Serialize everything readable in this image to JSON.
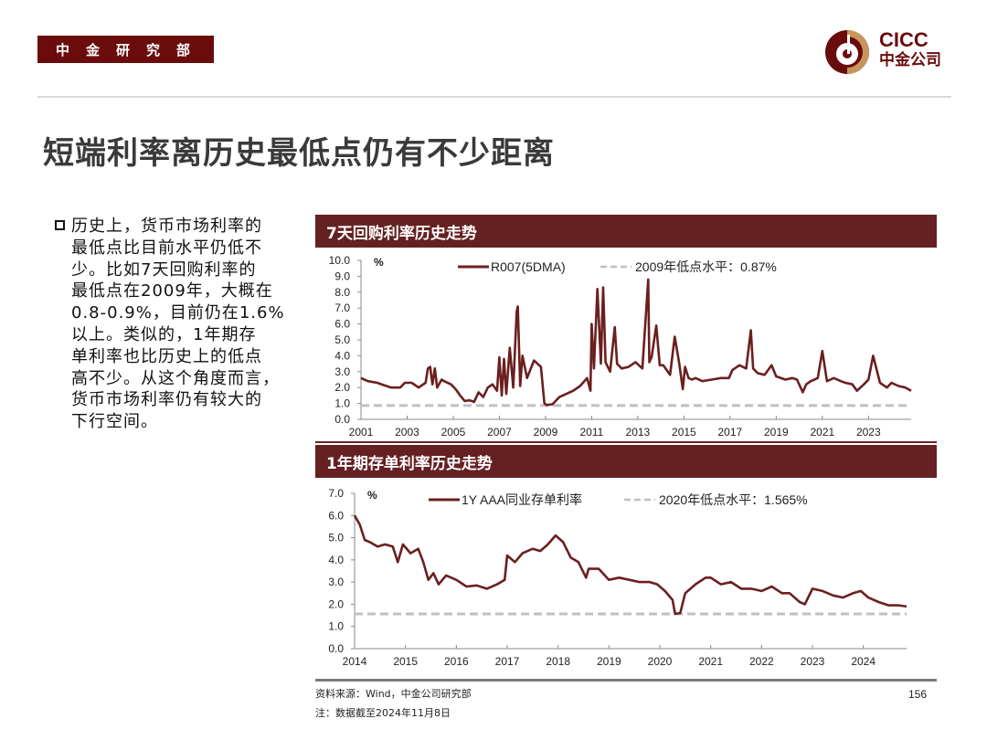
{
  "header": {
    "dept_badge": "中金研究部",
    "logo_en": "CICC",
    "logo_cn": "中金公司",
    "colors": {
      "brand_dark": "#6a0c0c",
      "brand_gold": "#c8955a",
      "panel_header": "#652121",
      "series_line": "#6b1f1f",
      "reference_line": "#c0c0c0"
    }
  },
  "page_title": "短端利率离历史最低点仍有不少距离",
  "bullet": {
    "icon": "hollow-square-bullet-icon",
    "text": "历史上，货币市场利率的最低点比目前水平仍低不少。比如7天回购利率的最低点在2009年，大概在0.8-0.9%，目前仍在1.6%以上。类似的，1年期存单利率也比历史上的低点高不少。从这个角度而言，货币市场利率仍有较大的下行空间。",
    "lines": [
      "历史上，货币市场利率的",
      "最低点比目前水平仍低不",
      "少。比如7天回购利率的",
      "最低点在2009年，大概在",
      "0.8-0.9%，目前仍在1.6%",
      "以上。类似的，1年期存",
      "单利率也比历史上的低点",
      "高不少。从这个角度而言，",
      "货币市场利率仍有较大的",
      "下行空间。"
    ]
  },
  "panels": [
    {
      "title": "7天回购利率历史走势"
    },
    {
      "title": "1年期存单利率历史走势"
    }
  ],
  "chart_data": [
    {
      "type": "line",
      "title": "7天回购利率历史走势",
      "ylabel": "%",
      "xlabel": "",
      "ylim": [
        0,
        10
      ],
      "yticks": [
        "0.0",
        "1.0",
        "2.0",
        "3.0",
        "4.0",
        "5.0",
        "6.0",
        "7.0",
        "8.0",
        "9.0",
        "10.0"
      ],
      "xticks": [
        "2001",
        "2003",
        "2005",
        "2007",
        "2009",
        "2011",
        "2013",
        "2015",
        "2017",
        "2019",
        "2021",
        "2023"
      ],
      "xlim": [
        2001,
        2024.85
      ],
      "grid": false,
      "legend_position": "top",
      "series": [
        {
          "name": "R007(5DMA)",
          "style": "solid",
          "x": [
            2001.0,
            2001.3,
            2001.7,
            2002.0,
            2002.3,
            2002.7,
            2002.9,
            2003.2,
            2003.5,
            2003.8,
            2003.9,
            2004.0,
            2004.1,
            2004.2,
            2004.3,
            2004.5,
            2004.6,
            2004.9,
            2005.1,
            2005.3,
            2005.5,
            2005.7,
            2005.9,
            2006.1,
            2006.3,
            2006.5,
            2006.7,
            2006.9,
            2007.0,
            2007.1,
            2007.2,
            2007.3,
            2007.45,
            2007.6,
            2007.75,
            2007.8,
            2007.9,
            2008.0,
            2008.2,
            2008.5,
            2008.8,
            2008.95,
            2009.05,
            2009.3,
            2009.6,
            2009.9,
            2010.2,
            2010.5,
            2010.8,
            2010.95,
            2011.0,
            2011.1,
            2011.25,
            2011.4,
            2011.5,
            2011.6,
            2011.8,
            2012.0,
            2012.1,
            2012.3,
            2012.6,
            2012.9,
            2013.2,
            2013.45,
            2013.5,
            2013.6,
            2013.8,
            2013.95,
            2014.1,
            2014.4,
            2014.6,
            2014.8,
            2014.95,
            2015.05,
            2015.2,
            2015.35,
            2015.5,
            2015.8,
            2016.2,
            2016.6,
            2016.95,
            2017.1,
            2017.4,
            2017.7,
            2017.9,
            2018.0,
            2018.2,
            2018.5,
            2018.8,
            2019.0,
            2019.4,
            2019.7,
            2019.9,
            2020.15,
            2020.3,
            2020.5,
            2020.8,
            2021.0,
            2021.2,
            2021.5,
            2021.8,
            2022.0,
            2022.3,
            2022.5,
            2022.8,
            2023.0,
            2023.2,
            2023.5,
            2023.8,
            2024.0,
            2024.3,
            2024.6,
            2024.85
          ],
          "y": [
            2.6,
            2.4,
            2.3,
            2.15,
            2.0,
            2.0,
            2.3,
            2.3,
            2.0,
            2.3,
            3.2,
            3.3,
            2.2,
            3.2,
            2.0,
            2.5,
            2.4,
            2.2,
            1.9,
            1.5,
            1.15,
            1.2,
            1.1,
            1.7,
            1.4,
            2.0,
            2.2,
            1.8,
            3.9,
            1.5,
            3.8,
            1.6,
            4.5,
            2.0,
            6.8,
            7.1,
            2.1,
            4.0,
            2.6,
            3.7,
            3.3,
            1.0,
            0.9,
            0.95,
            1.4,
            1.6,
            1.8,
            2.1,
            2.6,
            1.8,
            6.0,
            3.2,
            8.2,
            3.5,
            8.3,
            3.6,
            3.0,
            5.8,
            3.5,
            3.2,
            3.3,
            3.6,
            3.2,
            8.8,
            3.6,
            3.9,
            5.9,
            3.4,
            3.4,
            2.8,
            5.2,
            3.5,
            1.9,
            3.3,
            2.6,
            2.5,
            2.6,
            2.4,
            2.5,
            2.6,
            2.6,
            3.1,
            3.4,
            3.2,
            5.6,
            3.2,
            2.9,
            2.8,
            3.4,
            2.7,
            2.5,
            2.6,
            2.5,
            1.7,
            2.2,
            2.4,
            2.6,
            4.3,
            2.4,
            2.6,
            2.4,
            2.3,
            2.2,
            1.8,
            2.2,
            2.5,
            4.0,
            2.3,
            2.0,
            2.3,
            2.1,
            2.0,
            1.8
          ]
        },
        {
          "name": "2009年低点水平：0.87%",
          "style": "dashed",
          "value": 0.87
        }
      ],
      "legend": [
        "R007(5DMA)",
        "2009年低点水平：0.87%"
      ]
    },
    {
      "type": "line",
      "title": "1年期存单利率历史走势",
      "ylabel": "%",
      "xlabel": "",
      "ylim": [
        0,
        7
      ],
      "yticks": [
        "0.0",
        "1.0",
        "2.0",
        "3.0",
        "4.0",
        "5.0",
        "6.0",
        "7.0"
      ],
      "xticks": [
        "2014",
        "2015",
        "2016",
        "2017",
        "2018",
        "2019",
        "2020",
        "2021",
        "2022",
        "2023",
        "2024"
      ],
      "xlim": [
        2014,
        2024.85
      ],
      "grid": false,
      "legend_position": "top",
      "series": [
        {
          "name": "1Y AAA同业存单利率",
          "style": "solid",
          "x": [
            2014.0,
            2014.1,
            2014.2,
            2014.3,
            2014.45,
            2014.6,
            2014.75,
            2014.85,
            2014.95,
            2015.1,
            2015.25,
            2015.35,
            2015.45,
            2015.55,
            2015.65,
            2015.8,
            2016.0,
            2016.2,
            2016.4,
            2016.6,
            2016.8,
            2016.95,
            2017.0,
            2017.15,
            2017.3,
            2017.5,
            2017.65,
            2017.8,
            2017.95,
            2018.1,
            2018.25,
            2018.4,
            2018.55,
            2018.6,
            2018.8,
            2019.0,
            2019.2,
            2019.4,
            2019.6,
            2019.8,
            2019.95,
            2020.1,
            2020.25,
            2020.3,
            2020.4,
            2020.5,
            2020.7,
            2020.9,
            2021.0,
            2021.2,
            2021.4,
            2021.6,
            2021.8,
            2022.0,
            2022.2,
            2022.4,
            2022.55,
            2022.75,
            2022.85,
            2023.0,
            2023.2,
            2023.4,
            2023.6,
            2023.8,
            2023.95,
            2024.1,
            2024.3,
            2024.5,
            2024.7,
            2024.85
          ],
          "y": [
            6.0,
            5.6,
            4.9,
            4.8,
            4.6,
            4.7,
            4.6,
            3.9,
            4.7,
            4.3,
            4.5,
            3.9,
            3.1,
            3.4,
            2.9,
            3.3,
            3.1,
            2.8,
            2.85,
            2.7,
            2.9,
            3.1,
            4.2,
            3.9,
            4.3,
            4.5,
            4.4,
            4.7,
            5.1,
            4.8,
            4.1,
            3.9,
            3.2,
            3.6,
            3.6,
            3.1,
            3.2,
            3.1,
            3.0,
            3.0,
            2.9,
            2.6,
            2.2,
            1.57,
            1.6,
            2.5,
            2.9,
            3.2,
            3.2,
            2.9,
            3.0,
            2.7,
            2.7,
            2.6,
            2.8,
            2.5,
            2.5,
            2.1,
            2.0,
            2.7,
            2.6,
            2.4,
            2.3,
            2.5,
            2.6,
            2.3,
            2.1,
            1.95,
            1.95,
            1.9
          ]
        },
        {
          "name": "2020年低点水平：1.565%",
          "style": "dashed",
          "value": 1.565
        }
      ],
      "legend": [
        "1Y AAA同业存单利率",
        "2020年低点水平：1.565%"
      ]
    }
  ],
  "footer": {
    "source": "资料来源：Wind，中金公司研究部",
    "note": "注：数据截至2024年11月8日",
    "page_number": "156"
  }
}
